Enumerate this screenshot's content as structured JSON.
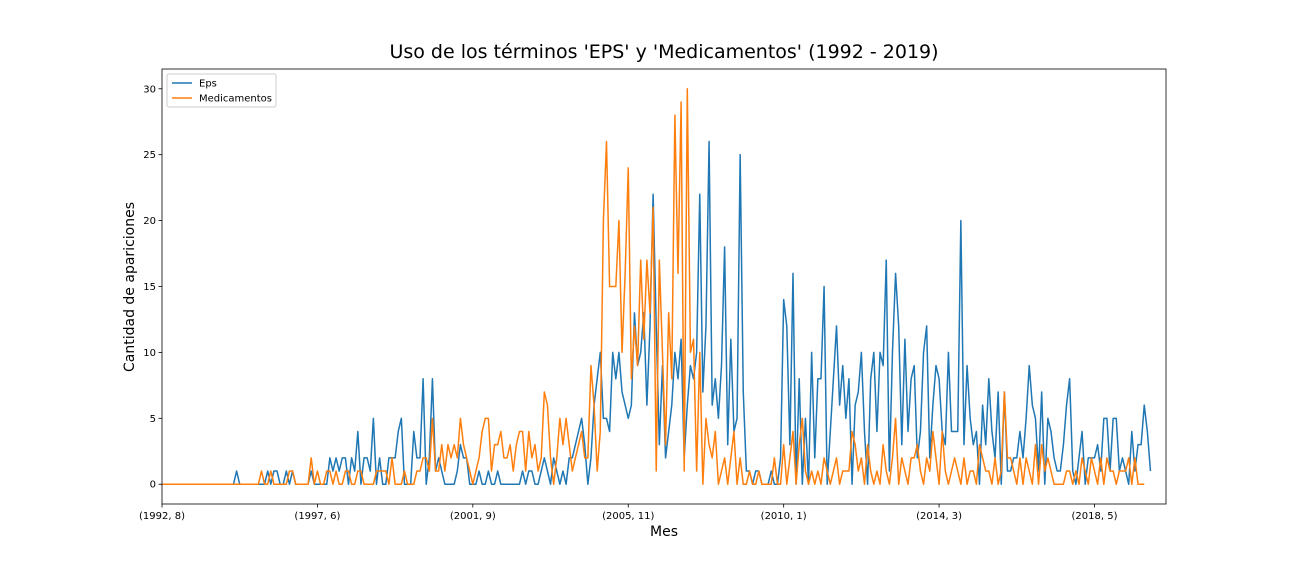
{
  "chart_data": {
    "type": "line",
    "title": "Uso de los términos 'EPS' y 'Medicamentos' (1992 - 2019)",
    "xlabel": "Mes",
    "ylabel": "Cantidad de apariciones",
    "x_range": [
      0,
      323
    ],
    "ylim": [
      -1.5,
      31.5
    ],
    "x_ticks": [
      {
        "label": "(1992, 8)",
        "index": 0
      },
      {
        "label": "(1997, 6)",
        "index": 50
      },
      {
        "label": "(2001, 9)",
        "index": 100
      },
      {
        "label": "(2005, 11)",
        "index": 150
      },
      {
        "label": "(2010, 1)",
        "index": 200
      },
      {
        "label": "(2014, 3)",
        "index": 250
      },
      {
        "label": "(2018, 5)",
        "index": 300
      }
    ],
    "y_ticks": [
      0,
      5,
      10,
      15,
      20,
      25,
      30
    ],
    "grid": false,
    "legend_position": "upper-left",
    "series": [
      {
        "name": "Eps",
        "color": "#1f77b4",
        "values": [
          0,
          0,
          0,
          0,
          0,
          0,
          0,
          0,
          0,
          0,
          0,
          0,
          0,
          0,
          0,
          0,
          0,
          0,
          0,
          0,
          0,
          0,
          0,
          0,
          1,
          0,
          0,
          0,
          0,
          0,
          0,
          0,
          0,
          0,
          1,
          0,
          1,
          1,
          0,
          0,
          1,
          0,
          1,
          0,
          0,
          0,
          0,
          0,
          1,
          0,
          0,
          0,
          0,
          0,
          2,
          1,
          2,
          1,
          2,
          2,
          0,
          2,
          1,
          4,
          0,
          2,
          2,
          1,
          5,
          0,
          2,
          0,
          0,
          2,
          2,
          2,
          4,
          5,
          0,
          0,
          0,
          4,
          2,
          2,
          8,
          0,
          2,
          8,
          1,
          2,
          1,
          0,
          0,
          0,
          0,
          1,
          3,
          2,
          2,
          0,
          0,
          0,
          1,
          0,
          0,
          1,
          0,
          0,
          1,
          0,
          0,
          0,
          0,
          0,
          0,
          0,
          1,
          0,
          1,
          1,
          0,
          0,
          1,
          2,
          1,
          0,
          2,
          1,
          0,
          1,
          0,
          2,
          2,
          3,
          4,
          5,
          3,
          0,
          2,
          6,
          8,
          10,
          5,
          5,
          4,
          10,
          8,
          10,
          7,
          6,
          5,
          6,
          13,
          9,
          10,
          13,
          6,
          12,
          22,
          12,
          3,
          9,
          2,
          4,
          6,
          10,
          8,
          11,
          2,
          6,
          9,
          8,
          10,
          22,
          7,
          12,
          26,
          6,
          8,
          5,
          9,
          18,
          3,
          11,
          4,
          5,
          25,
          7,
          1,
          1,
          0,
          1,
          1,
          0,
          0,
          0,
          1,
          0,
          0,
          2,
          14,
          12,
          3,
          16,
          0,
          8,
          0,
          5,
          0,
          10,
          2,
          8,
          8,
          15,
          0,
          4,
          8,
          12,
          6,
          9,
          5,
          8,
          0,
          6,
          7,
          10,
          4,
          0,
          8,
          10,
          4,
          10,
          9,
          17,
          1,
          10,
          16,
          12,
          3,
          11,
          4,
          8,
          9,
          2,
          4,
          10,
          12,
          2,
          6,
          9,
          8,
          4,
          3,
          10,
          4,
          4,
          4,
          20,
          3,
          9,
          5,
          3,
          4,
          0,
          6,
          3,
          8,
          4,
          2,
          7,
          0,
          7,
          1,
          1,
          2,
          2,
          4,
          2,
          5,
          9,
          6,
          5,
          1,
          7,
          0,
          5,
          4,
          2,
          1,
          1,
          3,
          6,
          8,
          1,
          0,
          2,
          4,
          0,
          2,
          2,
          2,
          3,
          1,
          5,
          5,
          1,
          5,
          5,
          1,
          2,
          1,
          0,
          4,
          1,
          3,
          3,
          6,
          4,
          1
        ]
      },
      {
        "name": "Medicamentos",
        "color": "#ff7f0e",
        "values": [
          0,
          0,
          0,
          0,
          0,
          0,
          0,
          0,
          0,
          0,
          0,
          0,
          0,
          0,
          0,
          0,
          0,
          0,
          0,
          0,
          0,
          0,
          0,
          0,
          0,
          0,
          0,
          0,
          0,
          0,
          0,
          0,
          1,
          0,
          0,
          1,
          0,
          0,
          0,
          0,
          0,
          1,
          1,
          0,
          0,
          0,
          0,
          0,
          2,
          0,
          1,
          0,
          0,
          1,
          1,
          0,
          1,
          0,
          0,
          1,
          1,
          0,
          0,
          1,
          1,
          0,
          0,
          0,
          0,
          1,
          1,
          1,
          1,
          0,
          2,
          0,
          0,
          0,
          1,
          0,
          0,
          0,
          1,
          1,
          2,
          2,
          1,
          5,
          1,
          1,
          3,
          1,
          3,
          2,
          3,
          2,
          5,
          3,
          2,
          1,
          0,
          1,
          2,
          4,
          5,
          5,
          1,
          3,
          3,
          4,
          2,
          2,
          3,
          1,
          3,
          4,
          4,
          1,
          4,
          2,
          3,
          1,
          2,
          7,
          6,
          2,
          0,
          2,
          5,
          3,
          5,
          3,
          1,
          2,
          3,
          4,
          2,
          2,
          9,
          6,
          1,
          4,
          20,
          26,
          15,
          15,
          15,
          20,
          10,
          16,
          24,
          8,
          12,
          9,
          17,
          11,
          17,
          13,
          21,
          1,
          17,
          10,
          3,
          13,
          8,
          28,
          16,
          29,
          1,
          30,
          10,
          11,
          1,
          10,
          0,
          5,
          3,
          2,
          4,
          0,
          1,
          2,
          0,
          2,
          4,
          0,
          2,
          0,
          0,
          1,
          0,
          0,
          1,
          0,
          0,
          0,
          0,
          2,
          0,
          0,
          3,
          0,
          2,
          4,
          0,
          3,
          5,
          1,
          0,
          1,
          0,
          1,
          0,
          2,
          1,
          0,
          1,
          2,
          0,
          1,
          1,
          1,
          4,
          3,
          1,
          2,
          0,
          3,
          1,
          0,
          1,
          0,
          3,
          1,
          0,
          2,
          5,
          0,
          2,
          1,
          0,
          2,
          2,
          3,
          1,
          0,
          2,
          1,
          4,
          2,
          0,
          4,
          1,
          0,
          1,
          2,
          1,
          0,
          2,
          0,
          1,
          1,
          0,
          3,
          2,
          1,
          1,
          0,
          2,
          0,
          1,
          7,
          2,
          2,
          1,
          0,
          2,
          0,
          2,
          1,
          0,
          3,
          0,
          3,
          1,
          2,
          1,
          0,
          0,
          0,
          0,
          1,
          1,
          0,
          1,
          0,
          2,
          1,
          0,
          2,
          1,
          0,
          2,
          0,
          2,
          1,
          1,
          0,
          1,
          1,
          1,
          2,
          0,
          2,
          0,
          0,
          0
        ]
      }
    ]
  }
}
